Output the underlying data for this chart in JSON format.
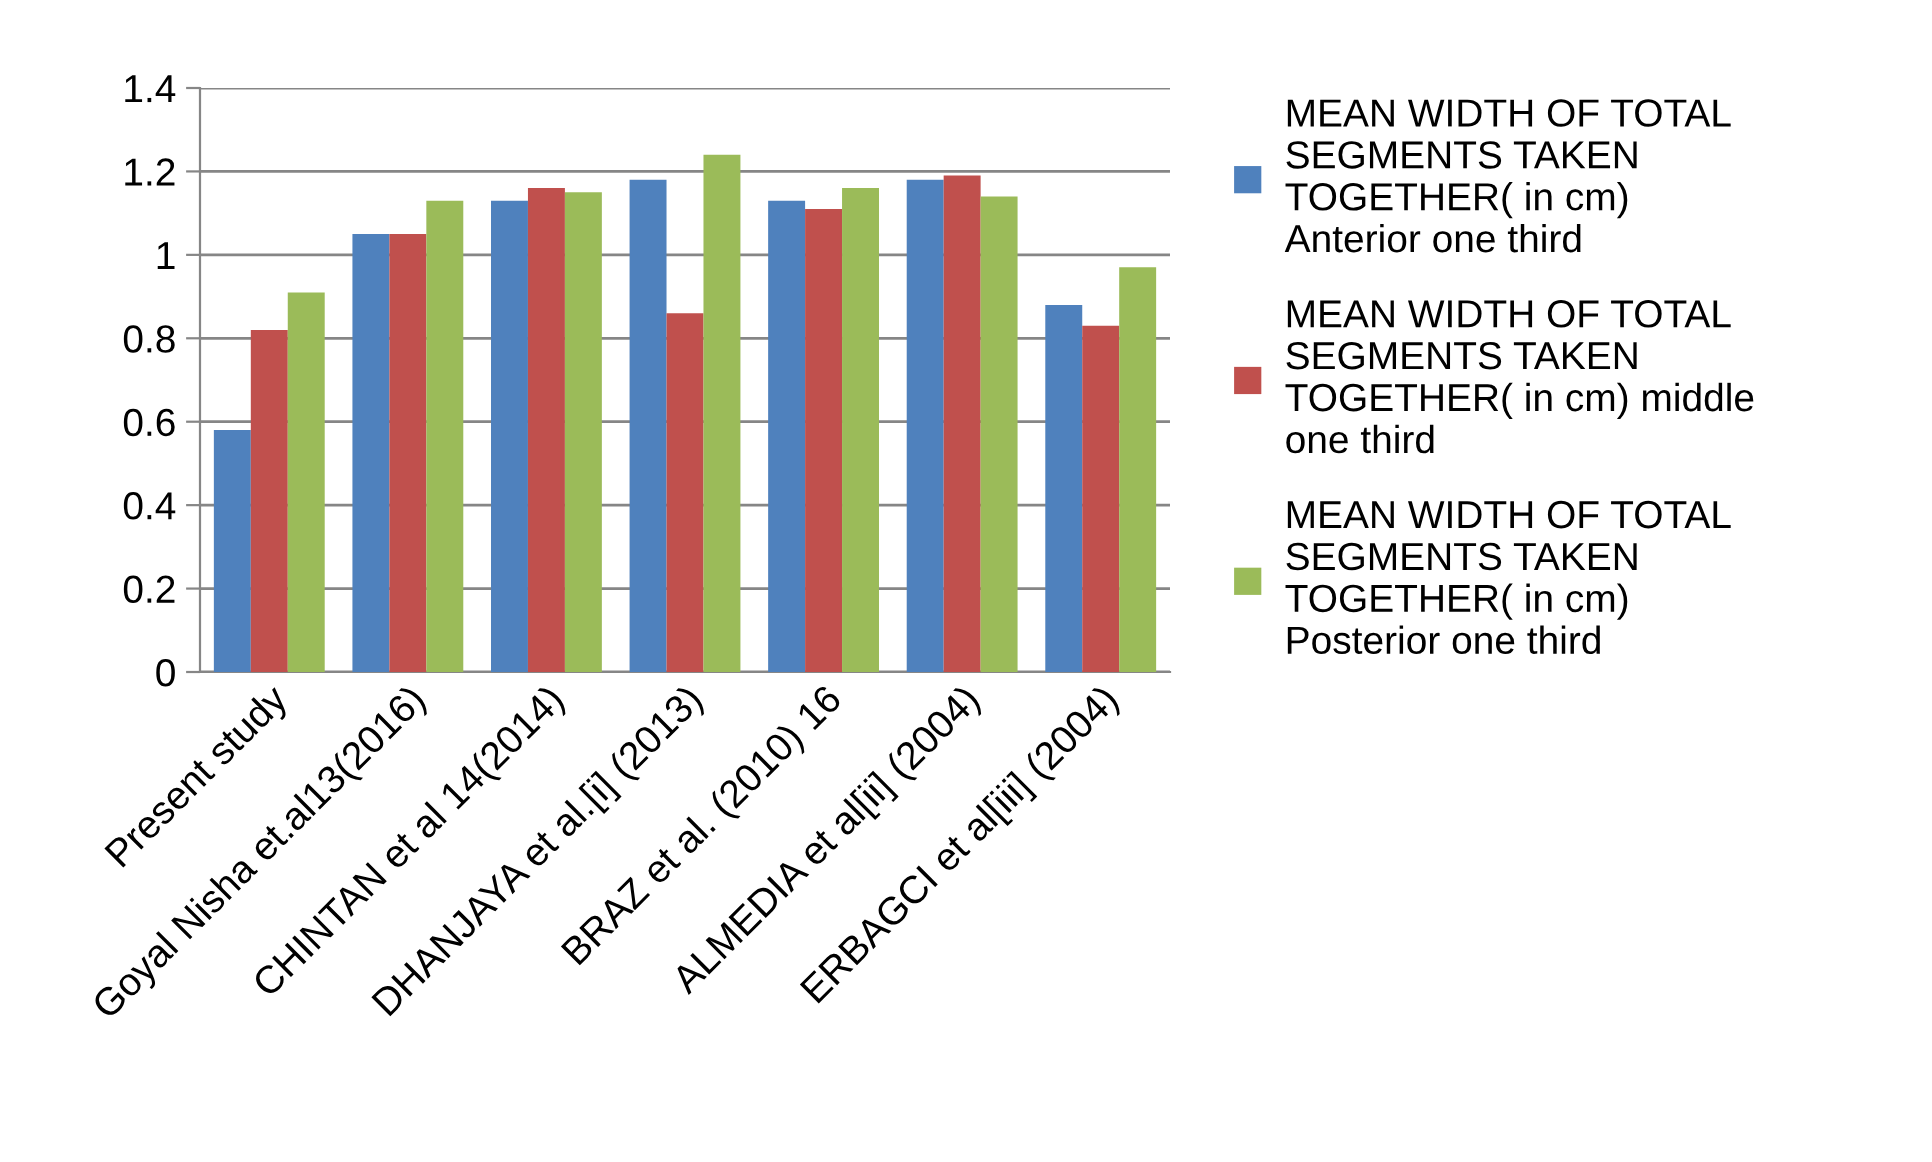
{
  "chart_data": {
    "type": "bar",
    "categories": [
      "Present study",
      "Goyal Nisha et.al13(2016)",
      "CHINTAN et al 14(2014)",
      "DHANJAYA et al.[i] (2013)",
      "BRAZ et al. (2010) 16",
      "ALMEDIA et al[ii] (2004)",
      "ERBAGCI et al[iii] (2004)"
    ],
    "series": [
      {
        "name": "MEAN WIDTH OF TOTAL\nSEGMENTS TAKEN\nTOGETHER( in cm)\nAnterior one third",
        "color": "#4f81bd",
        "values": [
          0.58,
          1.05,
          1.13,
          1.18,
          1.13,
          1.18,
          0.88
        ]
      },
      {
        "name": "MEAN WIDTH OF TOTAL\nSEGMENTS TAKEN\nTOGETHER( in cm) middle\none third",
        "color": "#c0504d",
        "values": [
          0.82,
          1.05,
          1.16,
          0.86,
          1.11,
          1.19,
          0.83
        ]
      },
      {
        "name": "MEAN WIDTH OF TOTAL\nSEGMENTS TAKEN\nTOGETHER( in cm)\nPosterior one third",
        "color": "#9bbb59",
        "values": [
          0.91,
          1.13,
          1.15,
          1.24,
          1.16,
          1.14,
          0.97
        ]
      }
    ],
    "ylim": [
      0,
      1.4
    ],
    "yticks": [
      0,
      0.2,
      0.4,
      0.6,
      0.8,
      1,
      1.2,
      1.4
    ],
    "grid": "y",
    "legend": "right"
  }
}
